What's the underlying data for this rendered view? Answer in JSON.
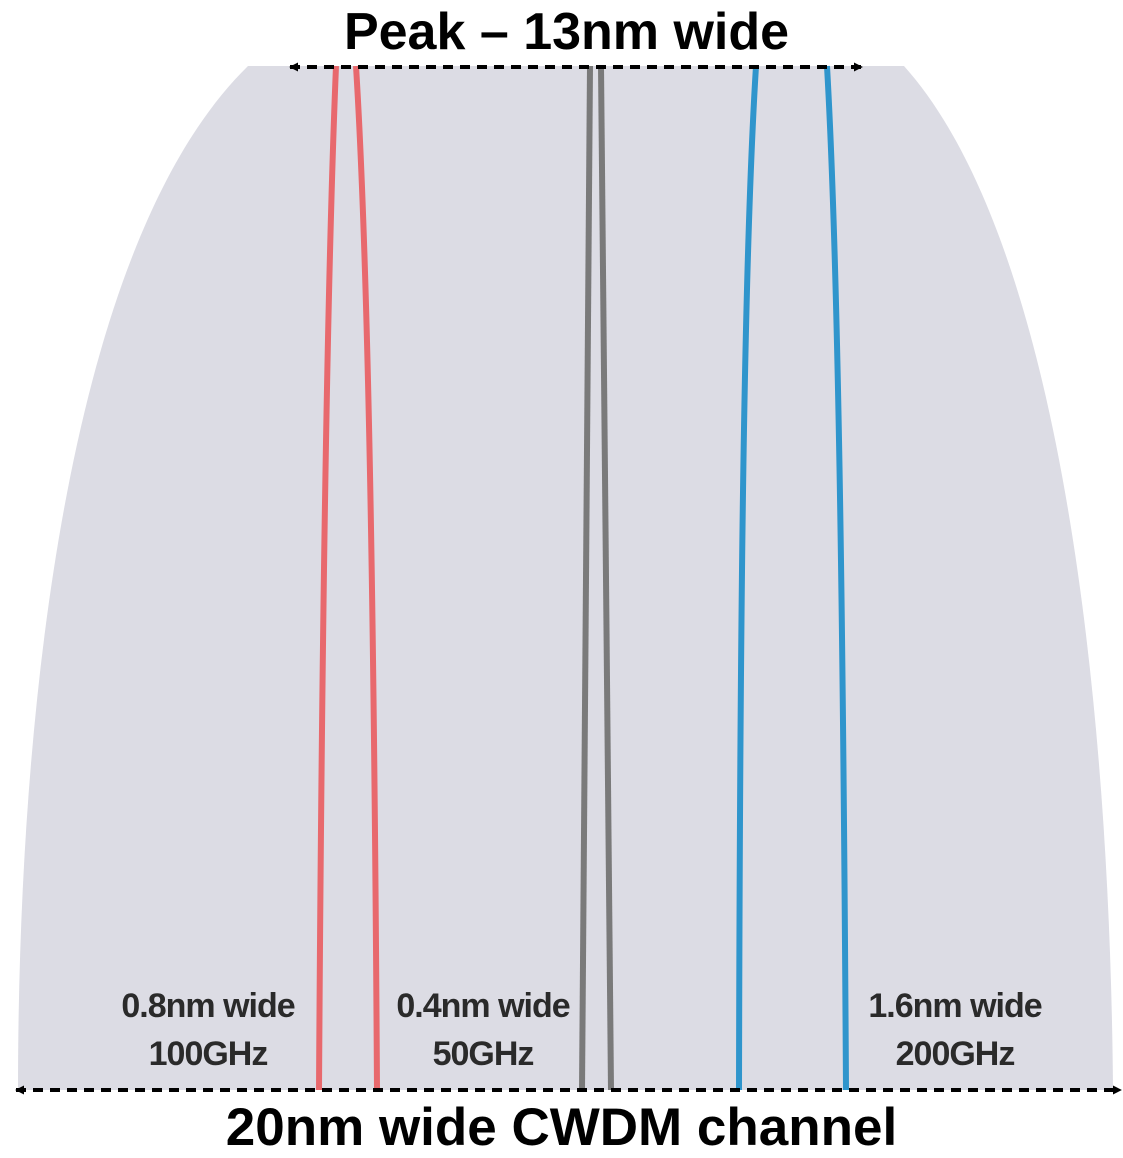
{
  "top_label": "Peak – 13nm wide",
  "bottom_label": "20nm wide CWDM channel",
  "channels": [
    {
      "width_label": "0.8nm wide",
      "spacing_label": "100GHz",
      "color": "#e8696d"
    },
    {
      "width_label": "0.4nm wide",
      "spacing_label": "50GHz",
      "color": "#7a7a7a"
    },
    {
      "width_label": "1.6nm wide",
      "spacing_label": "200GHz",
      "color": "#2f95cc"
    }
  ],
  "colors": {
    "cwdm_band": "#dcdce4",
    "arrow": "#000000"
  }
}
